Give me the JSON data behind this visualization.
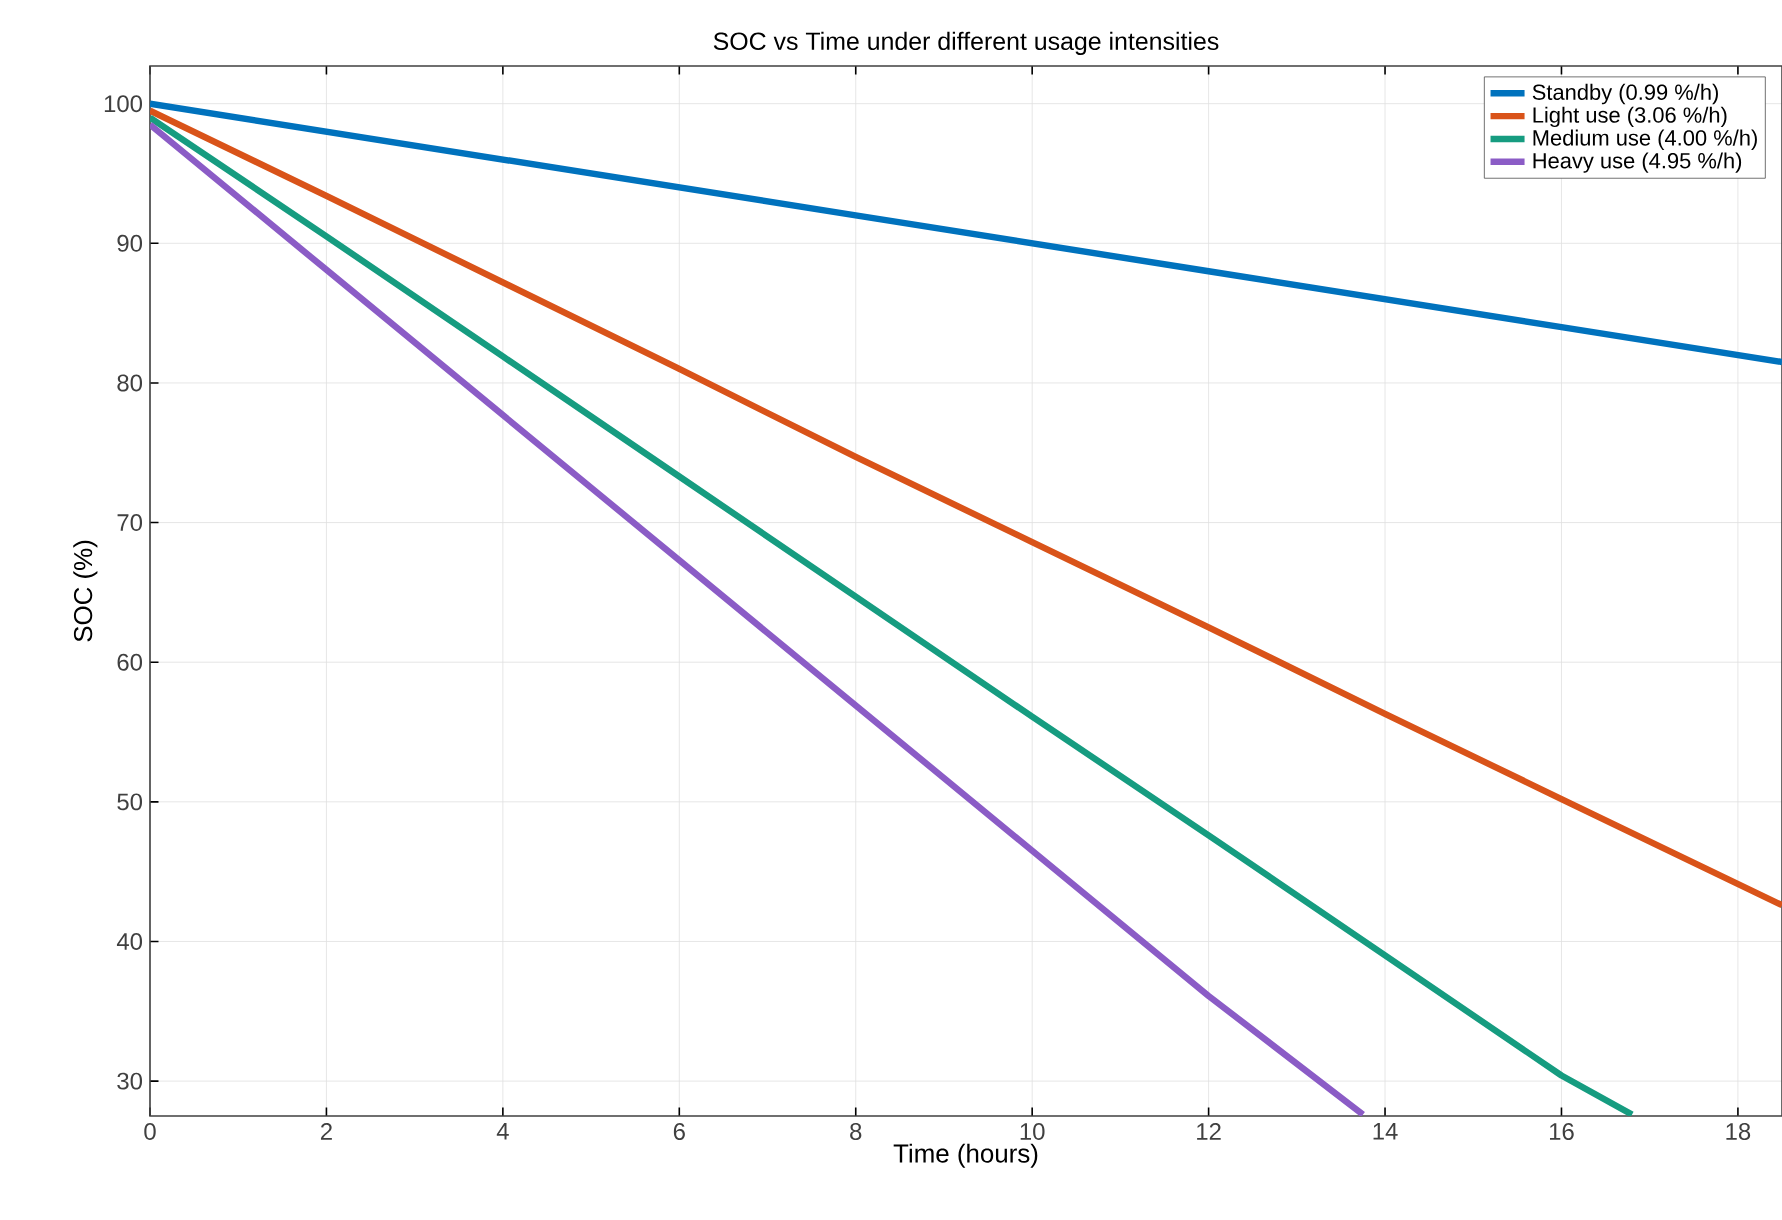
{
  "chart_data": {
    "type": "line",
    "title": "SOC vs Time under different usage intensities",
    "xlabel": "Time (hours)",
    "ylabel": "SOC (%)",
    "xlim": [
      0,
      18.5
    ],
    "ylim": [
      27.5,
      102.7
    ],
    "xticks": [
      0,
      2,
      4,
      6,
      8,
      10,
      12,
      14,
      16,
      18
    ],
    "yticks": [
      30,
      40,
      50,
      60,
      70,
      80,
      90,
      100
    ],
    "grid": true,
    "legend": "top right",
    "marker": "none",
    "line_style": "solid",
    "series": [
      {
        "name": "Standby (0.99 %/h)",
        "color": "#0072bd",
        "x": [
          0,
          4,
          8,
          12,
          16,
          18.5
        ],
        "values": [
          100,
          96,
          92,
          88,
          84,
          81.5
        ]
      },
      {
        "name": "Light use (3.06 %/h)",
        "color": "#d95319",
        "x": [
          0,
          2,
          4,
          6,
          8,
          10,
          12,
          14,
          16,
          18.5
        ],
        "values": [
          99.5,
          93.4,
          87.2,
          81,
          74.7,
          68.6,
          62.5,
          56.3,
          50.2,
          42.6
        ]
      },
      {
        "name": "Medium use (4.00 %/h)",
        "color": "#169c80",
        "x": [
          0,
          2,
          4,
          6,
          8,
          10,
          12,
          14,
          16,
          16.8
        ],
        "values": [
          99,
          90.5,
          81.9,
          73.3,
          64.7,
          56.1,
          47.6,
          39,
          30.4,
          27.6
        ]
      },
      {
        "name": "Heavy use (4.95 %/h)",
        "color": "#8b5cc6",
        "x": [
          0,
          2,
          4,
          6,
          8,
          10,
          12,
          13.75
        ],
        "values": [
          98.5,
          88.1,
          77.7,
          67.3,
          56.9,
          46.5,
          36.1,
          27.6
        ]
      }
    ]
  }
}
